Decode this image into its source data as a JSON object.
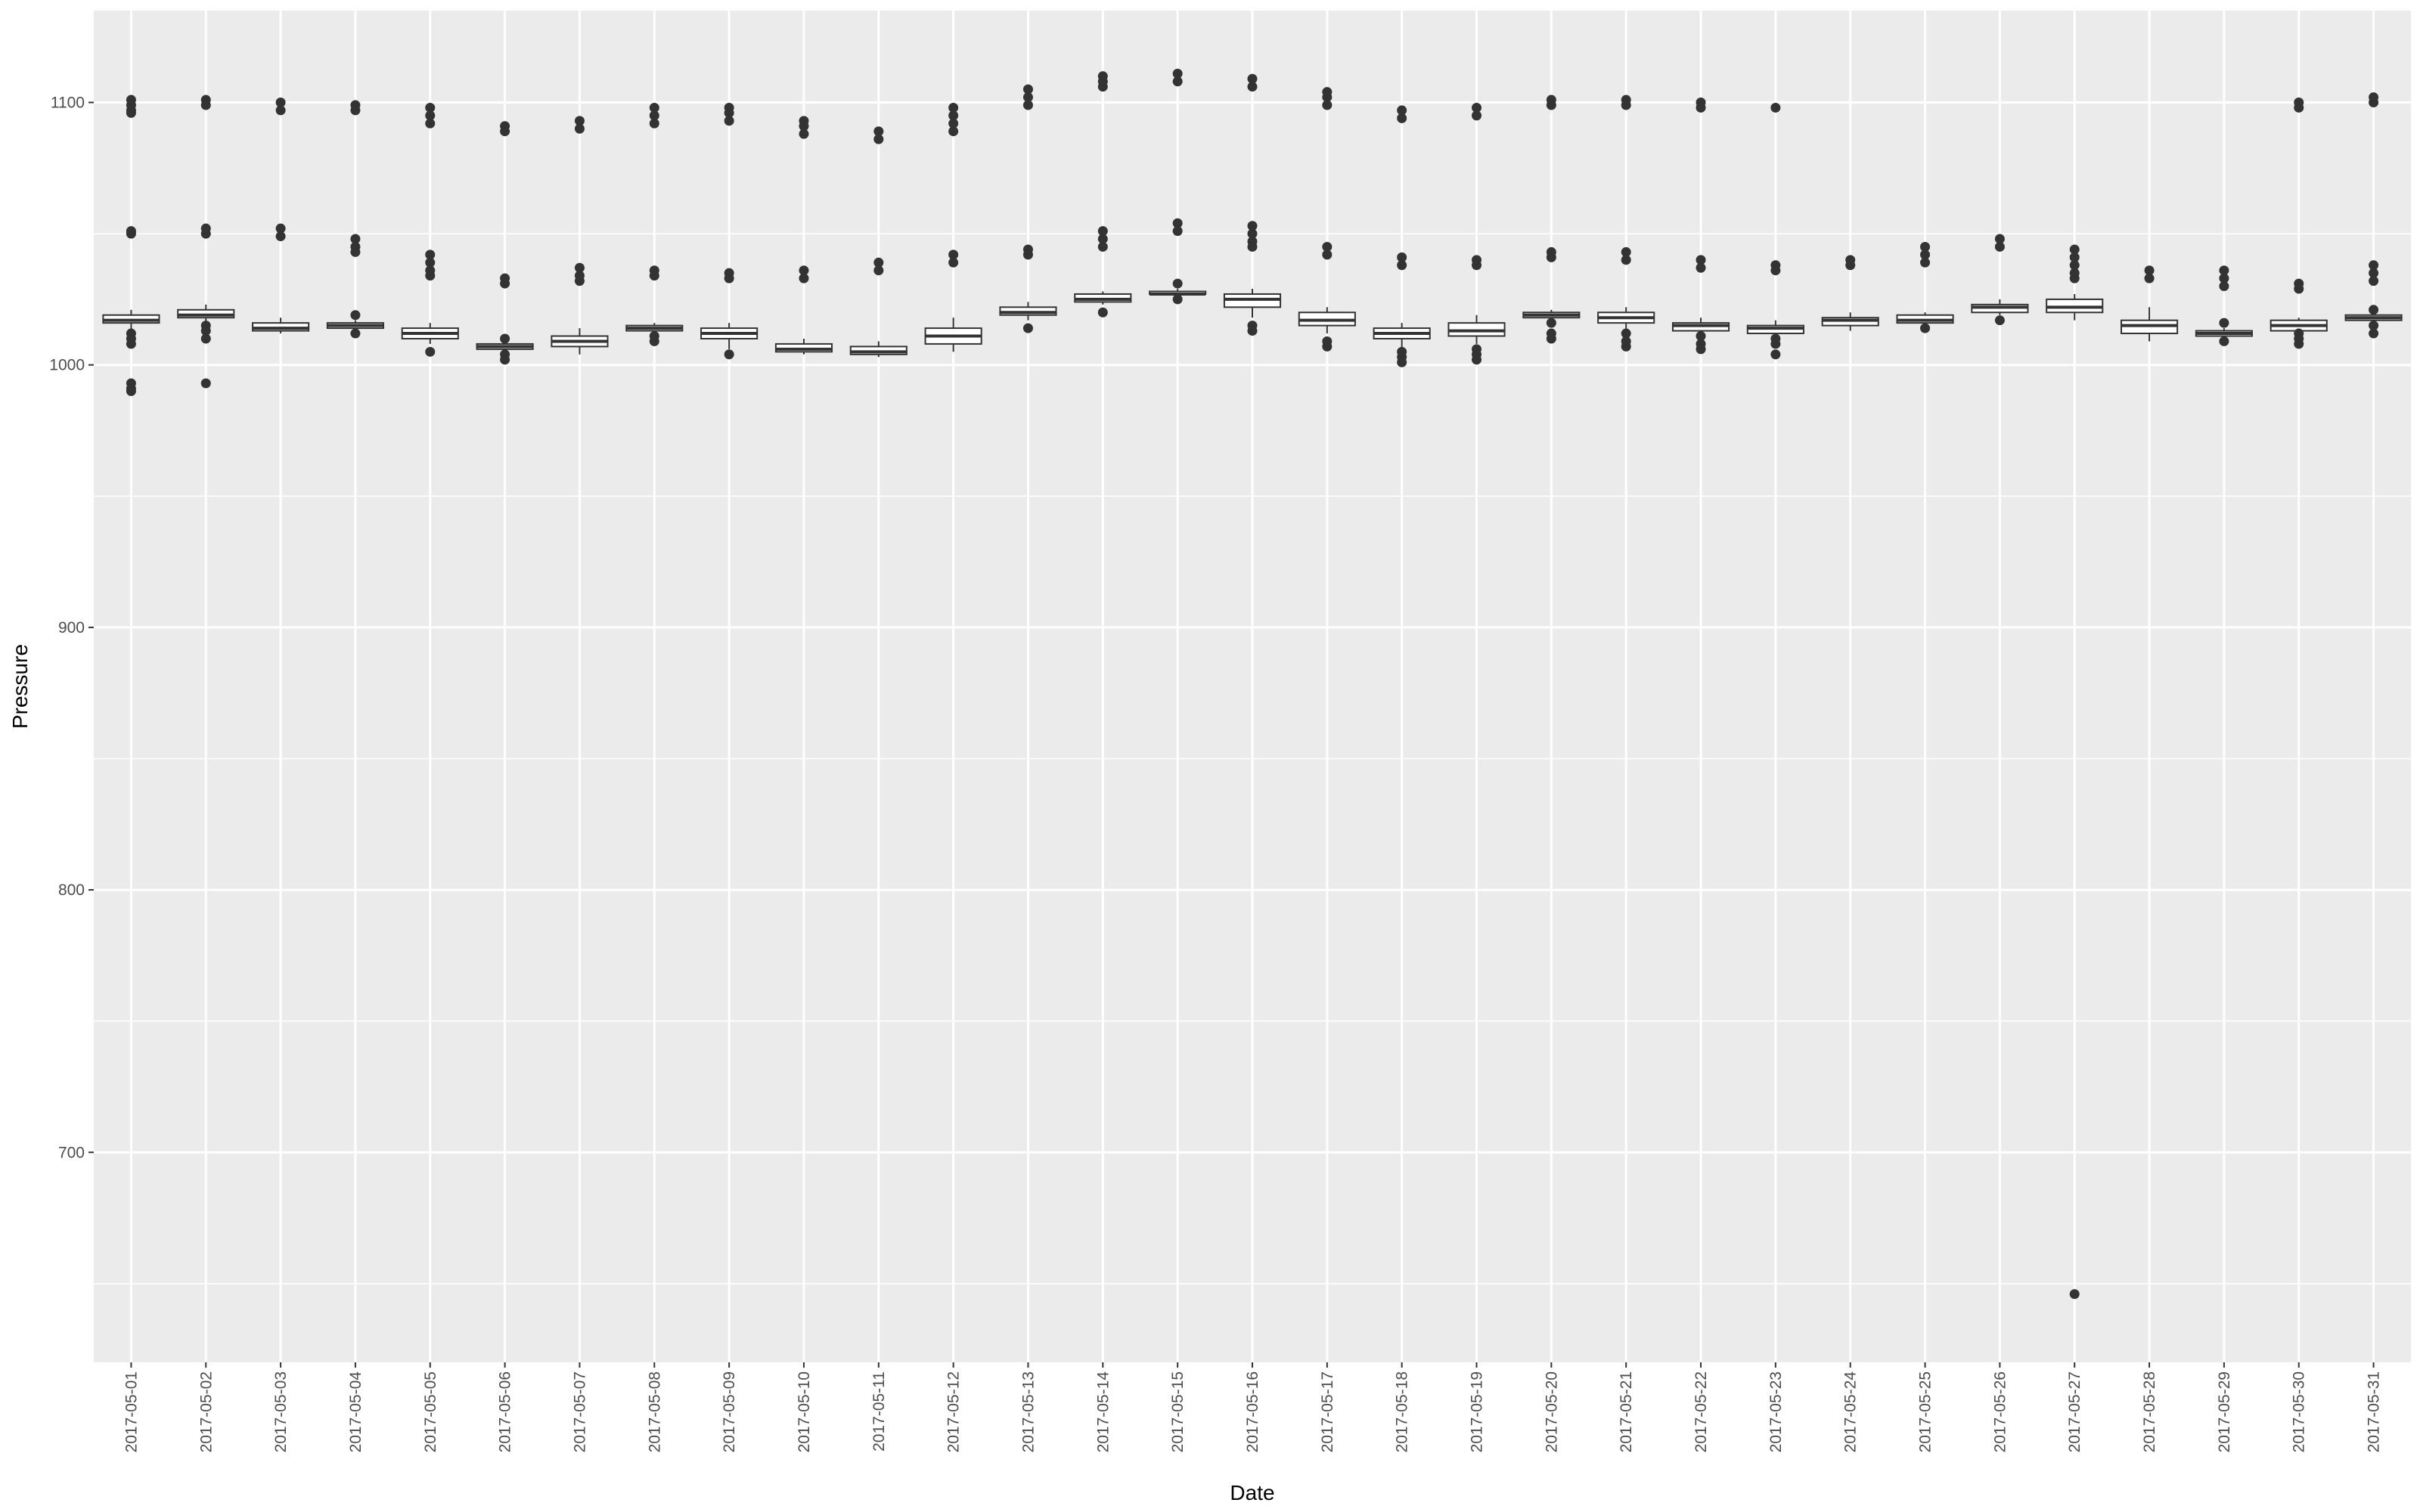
{
  "chart_data": {
    "type": "boxplot",
    "title": "",
    "xlabel": "Date",
    "ylabel": "Pressure",
    "ylim": [
      620,
      1135
    ],
    "yticks": [
      700,
      800,
      900,
      1000,
      1100
    ],
    "grid": true,
    "background": "#ebebeb",
    "gridline_color": "#ffffff",
    "box_fill": "#ffffff",
    "box_stroke": "#333333",
    "categories": [
      "2017-05-01",
      "2017-05-02",
      "2017-05-03",
      "2017-05-04",
      "2017-05-05",
      "2017-05-06",
      "2017-05-07",
      "2017-05-08",
      "2017-05-09",
      "2017-05-10",
      "2017-05-11",
      "2017-05-12",
      "2017-05-13",
      "2017-05-14",
      "2017-05-15",
      "2017-05-16",
      "2017-05-17",
      "2017-05-18",
      "2017-05-19",
      "2017-05-20",
      "2017-05-21",
      "2017-05-22",
      "2017-05-23",
      "2017-05-24",
      "2017-05-25",
      "2017-05-26",
      "2017-05-27",
      "2017-05-28",
      "2017-05-29",
      "2017-05-30",
      "2017-05-31"
    ],
    "boxes": [
      {
        "whisker_low": 1012,
        "q1": 1016,
        "median": 1017,
        "q3": 1019,
        "whisker_high": 1021,
        "outliers": [
          1101,
          1099,
          1097,
          1096,
          1051,
          1050,
          1012,
          1010,
          1008,
          993,
          991,
          990
        ]
      },
      {
        "whisker_low": 1016,
        "q1": 1018,
        "median": 1019,
        "q3": 1021,
        "whisker_high": 1023,
        "outliers": [
          1101,
          1099,
          1052,
          1050,
          1015,
          1013,
          1010,
          993
        ]
      },
      {
        "whisker_low": 1012,
        "q1": 1013,
        "median": 1014,
        "q3": 1016,
        "whisker_high": 1018,
        "outliers": [
          1100,
          1097,
          1052,
          1049
        ]
      },
      {
        "whisker_low": 1013,
        "q1": 1014,
        "median": 1015,
        "q3": 1016,
        "whisker_high": 1017,
        "outliers": [
          1099,
          1097,
          1048,
          1045,
          1043,
          1019,
          1012
        ]
      },
      {
        "whisker_low": 1008,
        "q1": 1010,
        "median": 1012,
        "q3": 1014,
        "whisker_high": 1016,
        "outliers": [
          1098,
          1095,
          1092,
          1042,
          1039,
          1036,
          1034,
          1005
        ]
      },
      {
        "whisker_low": 1005,
        "q1": 1006,
        "median": 1007,
        "q3": 1008,
        "whisker_high": 1009,
        "outliers": [
          1091,
          1089,
          1033,
          1031,
          1010,
          1004,
          1002
        ]
      },
      {
        "whisker_low": 1004,
        "q1": 1007,
        "median": 1009,
        "q3": 1011,
        "whisker_high": 1014,
        "outliers": [
          1093,
          1090,
          1037,
          1034,
          1032
        ]
      },
      {
        "whisker_low": 1011,
        "q1": 1013,
        "median": 1014,
        "q3": 1015,
        "whisker_high": 1016,
        "outliers": [
          1098,
          1095,
          1092,
          1036,
          1034,
          1011,
          1009
        ]
      },
      {
        "whisker_low": 1006,
        "q1": 1010,
        "median": 1012,
        "q3": 1014,
        "whisker_high": 1016,
        "outliers": [
          1098,
          1096,
          1093,
          1035,
          1033,
          1004
        ]
      },
      {
        "whisker_low": 1004,
        "q1": 1005,
        "median": 1006,
        "q3": 1008,
        "whisker_high": 1010,
        "outliers": [
          1093,
          1091,
          1088,
          1036,
          1033
        ]
      },
      {
        "whisker_low": 1003,
        "q1": 1004,
        "median": 1005,
        "q3": 1007,
        "whisker_high": 1009,
        "outliers": [
          1089,
          1086,
          1039,
          1036
        ]
      },
      {
        "whisker_low": 1005,
        "q1": 1008,
        "median": 1011,
        "q3": 1014,
        "whisker_high": 1018,
        "outliers": [
          1098,
          1095,
          1092,
          1089,
          1042,
          1039
        ]
      },
      {
        "whisker_low": 1017,
        "q1": 1019,
        "median": 1020,
        "q3": 1022,
        "whisker_high": 1024,
        "outliers": [
          1105,
          1102,
          1099,
          1044,
          1042,
          1014
        ]
      },
      {
        "whisker_low": 1023,
        "q1": 1024,
        "median": 1025,
        "q3": 1027,
        "whisker_high": 1028,
        "outliers": [
          1110,
          1108,
          1106,
          1051,
          1048,
          1045,
          1020
        ]
      },
      {
        "whisker_low": 1026,
        "q1": 1027,
        "median": 1027,
        "q3": 1028,
        "whisker_high": 1029,
        "outliers": [
          1111,
          1108,
          1054,
          1051,
          1031,
          1025
        ]
      },
      {
        "whisker_low": 1018,
        "q1": 1022,
        "median": 1025,
        "q3": 1027,
        "whisker_high": 1029,
        "outliers": [
          1109,
          1106,
          1053,
          1050,
          1047,
          1045,
          1015,
          1013
        ]
      },
      {
        "whisker_low": 1012,
        "q1": 1015,
        "median": 1017,
        "q3": 1020,
        "whisker_high": 1022,
        "outliers": [
          1104,
          1102,
          1099,
          1045,
          1042,
          1009,
          1007
        ]
      },
      {
        "whisker_low": 1006,
        "q1": 1010,
        "median": 1012,
        "q3": 1014,
        "whisker_high": 1016,
        "outliers": [
          1097,
          1094,
          1041,
          1038,
          1005,
          1003,
          1001
        ]
      },
      {
        "whisker_low": 1008,
        "q1": 1011,
        "median": 1013,
        "q3": 1016,
        "whisker_high": 1019,
        "outliers": [
          1098,
          1095,
          1040,
          1038,
          1006,
          1004,
          1002
        ]
      },
      {
        "whisker_low": 1017,
        "q1": 1018,
        "median": 1019,
        "q3": 1020,
        "whisker_high": 1021,
        "outliers": [
          1101,
          1099,
          1043,
          1041,
          1016,
          1012,
          1010
        ]
      },
      {
        "whisker_low": 1013,
        "q1": 1016,
        "median": 1018,
        "q3": 1020,
        "whisker_high": 1022,
        "outliers": [
          1101,
          1099,
          1043,
          1040,
          1012,
          1009,
          1007
        ]
      },
      {
        "whisker_low": 1011,
        "q1": 1013,
        "median": 1015,
        "q3": 1016,
        "whisker_high": 1018,
        "outliers": [
          1100,
          1098,
          1040,
          1037,
          1011,
          1008,
          1006
        ]
      },
      {
        "whisker_low": 1011,
        "q1": 1012,
        "median": 1014,
        "q3": 1015,
        "whisker_high": 1017,
        "outliers": [
          1098,
          1038,
          1036,
          1010,
          1008,
          1004
        ]
      },
      {
        "whisker_low": 1013,
        "q1": 1015,
        "median": 1017,
        "q3": 1018,
        "whisker_high": 1020,
        "outliers": [
          1040,
          1038
        ]
      },
      {
        "whisker_low": 1015,
        "q1": 1016,
        "median": 1017,
        "q3": 1019,
        "whisker_high": 1020,
        "outliers": [
          1045,
          1042,
          1039,
          1014
        ]
      },
      {
        "whisker_low": 1019,
        "q1": 1020,
        "median": 1022,
        "q3": 1023,
        "whisker_high": 1025,
        "outliers": [
          1048,
          1045,
          1017
        ]
      },
      {
        "whisker_low": 1017,
        "q1": 1020,
        "median": 1022,
        "q3": 1025,
        "whisker_high": 1027,
        "outliers": [
          1044,
          1041,
          1038,
          1035,
          1033,
          646
        ]
      },
      {
        "whisker_low": 1009,
        "q1": 1012,
        "median": 1015,
        "q3": 1017,
        "whisker_high": 1022,
        "outliers": [
          1036,
          1033
        ]
      },
      {
        "whisker_low": 1010,
        "q1": 1011,
        "median": 1012,
        "q3": 1013,
        "whisker_high": 1014,
        "outliers": [
          1036,
          1033,
          1030,
          1016,
          1009
        ]
      },
      {
        "whisker_low": 1011,
        "q1": 1013,
        "median": 1015,
        "q3": 1017,
        "whisker_high": 1018,
        "outliers": [
          1100,
          1098,
          1031,
          1029,
          1012,
          1010,
          1008
        ]
      },
      {
        "whisker_low": 1016,
        "q1": 1017,
        "median": 1018,
        "q3": 1019,
        "whisker_high": 1020,
        "outliers": [
          1102,
          1100,
          1038,
          1035,
          1032,
          1021,
          1015,
          1012
        ]
      }
    ]
  }
}
